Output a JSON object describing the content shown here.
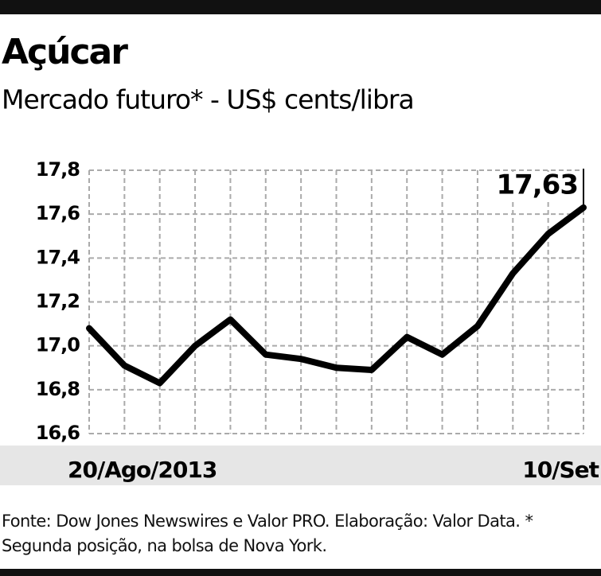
{
  "chart_data": {
    "type": "line",
    "title": "Açúcar",
    "subtitle": "Mercado futuro* - US$ cents/libra",
    "categories": [
      "20/Ago/2013",
      null,
      null,
      null,
      null,
      null,
      null,
      null,
      null,
      null,
      null,
      null,
      null,
      null,
      "10/Set"
    ],
    "series": [
      {
        "name": "Açúcar",
        "color": "#000000",
        "values": [
          17.08,
          16.91,
          16.83,
          17.0,
          17.12,
          16.96,
          16.94,
          16.9,
          16.89,
          17.04,
          16.96,
          17.09,
          17.33,
          17.51,
          17.63
        ],
        "value_labels": [
          null,
          null,
          null,
          null,
          null,
          null,
          null,
          null,
          null,
          null,
          null,
          null,
          null,
          null,
          "17,63"
        ]
      }
    ],
    "ylim": [
      16.6,
      17.8
    ],
    "yticks": [
      {
        "value": 16.6,
        "label": "16,6"
      },
      {
        "value": 16.8,
        "label": "16,8"
      },
      {
        "value": 17.0,
        "label": "17,0"
      },
      {
        "value": 17.2,
        "label": "17,2"
      },
      {
        "value": 17.4,
        "label": "17,4"
      },
      {
        "value": 17.6,
        "label": "17,6"
      },
      {
        "value": 17.8,
        "label": "17,8"
      }
    ],
    "grid": true,
    "source": "Fonte: Dow Jones Newswires e Valor PRO. Elaboração: Valor Data. * Segunda posição, na bolsa de Nova York."
  }
}
